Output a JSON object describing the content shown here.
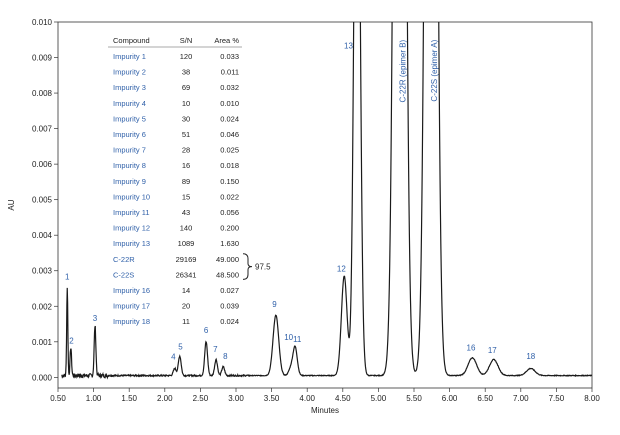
{
  "chart_data": {
    "type": "line",
    "xlabel": "Minutes",
    "ylabel": "AU",
    "xlim": [
      0.5,
      8.0
    ],
    "ylim": [
      -0.0003,
      0.01
    ],
    "x_ticks": [
      "0.50",
      "1.00",
      "1.50",
      "2.00",
      "2.50",
      "3.00",
      "3.50",
      "4.00",
      "4.50",
      "5.00",
      "5.50",
      "6.00",
      "6.50",
      "7.00",
      "7.50",
      "8.00"
    ],
    "y_ticks": [
      "0.000",
      "0.001",
      "0.002",
      "0.003",
      "0.004",
      "0.005",
      "0.006",
      "0.007",
      "0.008",
      "0.009",
      "0.010"
    ],
    "grid": false,
    "baseline": 5e-05,
    "peaks": [
      {
        "label": "1",
        "x": 0.63,
        "y": 0.0025,
        "w": 0.008
      },
      {
        "label": "2",
        "x": 0.68,
        "y": 0.0008,
        "w": 0.01
      },
      {
        "label": "3",
        "x": 1.02,
        "y": 0.0014,
        "w": 0.012
      },
      {
        "label": "4",
        "x": 2.14,
        "y": 0.0002,
        "w": 0.02
      },
      {
        "label": "5",
        "x": 2.21,
        "y": 0.00055,
        "w": 0.02
      },
      {
        "label": "6",
        "x": 2.58,
        "y": 0.00095,
        "w": 0.02
      },
      {
        "label": "7",
        "x": 2.72,
        "y": 0.00045,
        "w": 0.02
      },
      {
        "label": "8",
        "x": 2.82,
        "y": 0.00025,
        "w": 0.02
      },
      {
        "label": "9",
        "x": 3.56,
        "y": 0.0017,
        "w": 0.04
      },
      {
        "label": "10",
        "x": 3.77,
        "y": 0.0002,
        "w": 0.03
      },
      {
        "label": "11",
        "x": 3.83,
        "y": 0.0008,
        "w": 0.03
      },
      {
        "label": "12",
        "x": 4.52,
        "y": 0.0028,
        "w": 0.04
      },
      {
        "label": "13",
        "x": 4.7,
        "y": 0.02,
        "w": 0.04
      },
      {
        "label": "C-22R (epimer B)",
        "x": 5.3,
        "y": 0.05,
        "w": 0.06
      },
      {
        "label": "C-22S (epimer A)",
        "x": 5.74,
        "y": 0.05,
        "w": 0.06
      },
      {
        "label": "16",
        "x": 6.32,
        "y": 0.0005,
        "w": 0.06
      },
      {
        "label": "17",
        "x": 6.62,
        "y": 0.00045,
        "w": 0.06
      },
      {
        "label": "18",
        "x": 7.14,
        "y": 0.0002,
        "w": 0.06
      }
    ],
    "peak_labels": [
      {
        "text": "1",
        "x": 0.63,
        "y": 0.00275
      },
      {
        "text": "2",
        "x": 0.69,
        "y": 0.00095
      },
      {
        "text": "3",
        "x": 1.02,
        "y": 0.00158
      },
      {
        "text": "4",
        "x": 2.12,
        "y": 0.0005
      },
      {
        "text": "5",
        "x": 2.22,
        "y": 0.00078
      },
      {
        "text": "6",
        "x": 2.58,
        "y": 0.00125
      },
      {
        "text": "7",
        "x": 2.71,
        "y": 0.00072
      },
      {
        "text": "8",
        "x": 2.85,
        "y": 0.00052
      },
      {
        "text": "9",
        "x": 3.54,
        "y": 0.00198
      },
      {
        "text": "10",
        "x": 3.74,
        "y": 0.00105
      },
      {
        "text": "11",
        "x": 3.86,
        "y": 0.001
      },
      {
        "text": "12",
        "x": 4.48,
        "y": 0.00298
      },
      {
        "text": "13",
        "x": 4.58,
        "y": 0.00925
      },
      {
        "text": "16",
        "x": 6.3,
        "y": 0.00075
      },
      {
        "text": "17",
        "x": 6.6,
        "y": 0.00068
      },
      {
        "text": "18",
        "x": 7.14,
        "y": 0.00051
      }
    ],
    "vertical_labels": [
      {
        "text": "C-22R (epimer B)",
        "x": 5.38,
        "y": 0.0095
      },
      {
        "text": "C-22S (epimer A)",
        "x": 5.82,
        "y": 0.0095
      }
    ],
    "table": {
      "headers": [
        "Compound",
        "S/N",
        "Area %"
      ],
      "rows": [
        [
          "Impurity 1",
          "120",
          "0.033"
        ],
        [
          "Impurity 2",
          "38",
          "0.011"
        ],
        [
          "Impurity 3",
          "69",
          "0.032"
        ],
        [
          "Impurity 4",
          "10",
          "0.010"
        ],
        [
          "Impurity 5",
          "30",
          "0.024"
        ],
        [
          "Impurity 6",
          "51",
          "0.046"
        ],
        [
          "Impurity 7",
          "28",
          "0.025"
        ],
        [
          "Impurity 8",
          "16",
          "0.018"
        ],
        [
          "Impurity 9",
          "89",
          "0.150"
        ],
        [
          "Impurity 10",
          "15",
          "0.022"
        ],
        [
          "Impurity 11",
          "43",
          "0.056"
        ],
        [
          "Impurity 12",
          "140",
          "0.200"
        ],
        [
          "Impurity 13",
          "1089",
          "1.630"
        ],
        [
          "C-22R",
          "29169",
          "49.000"
        ],
        [
          "C-22S",
          "26341",
          "48.500"
        ],
        [
          "Impurity 16",
          "14",
          "0.027"
        ],
        [
          "Impurity 17",
          "20",
          "0.039"
        ],
        [
          "Impurity 18",
          "11",
          "0.024"
        ]
      ],
      "brace_total": "97.5"
    }
  }
}
